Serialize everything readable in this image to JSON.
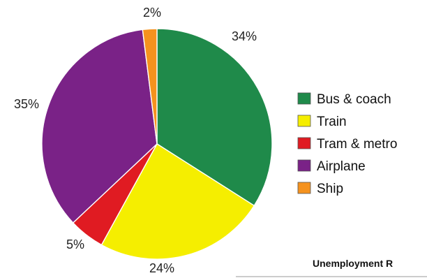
{
  "chart_data": {
    "type": "pie",
    "title": "",
    "slices": [
      {
        "name": "Bus & coach",
        "value": 34,
        "label": "34%",
        "color": "#1f8a4a"
      },
      {
        "name": "Train",
        "value": 24,
        "label": "24%",
        "color": "#f5ee00"
      },
      {
        "name": "Tram & metro",
        "value": 5,
        "label": "5%",
        "color": "#e01b22"
      },
      {
        "name": "Airplane",
        "value": 35,
        "label": "35%",
        "color": "#7a2287"
      },
      {
        "name": "Ship",
        "value": 2,
        "label": "2%",
        "color": "#f5921e"
      }
    ],
    "legend_position": "right"
  },
  "cropped_chart": {
    "title": "Unemployment R"
  }
}
